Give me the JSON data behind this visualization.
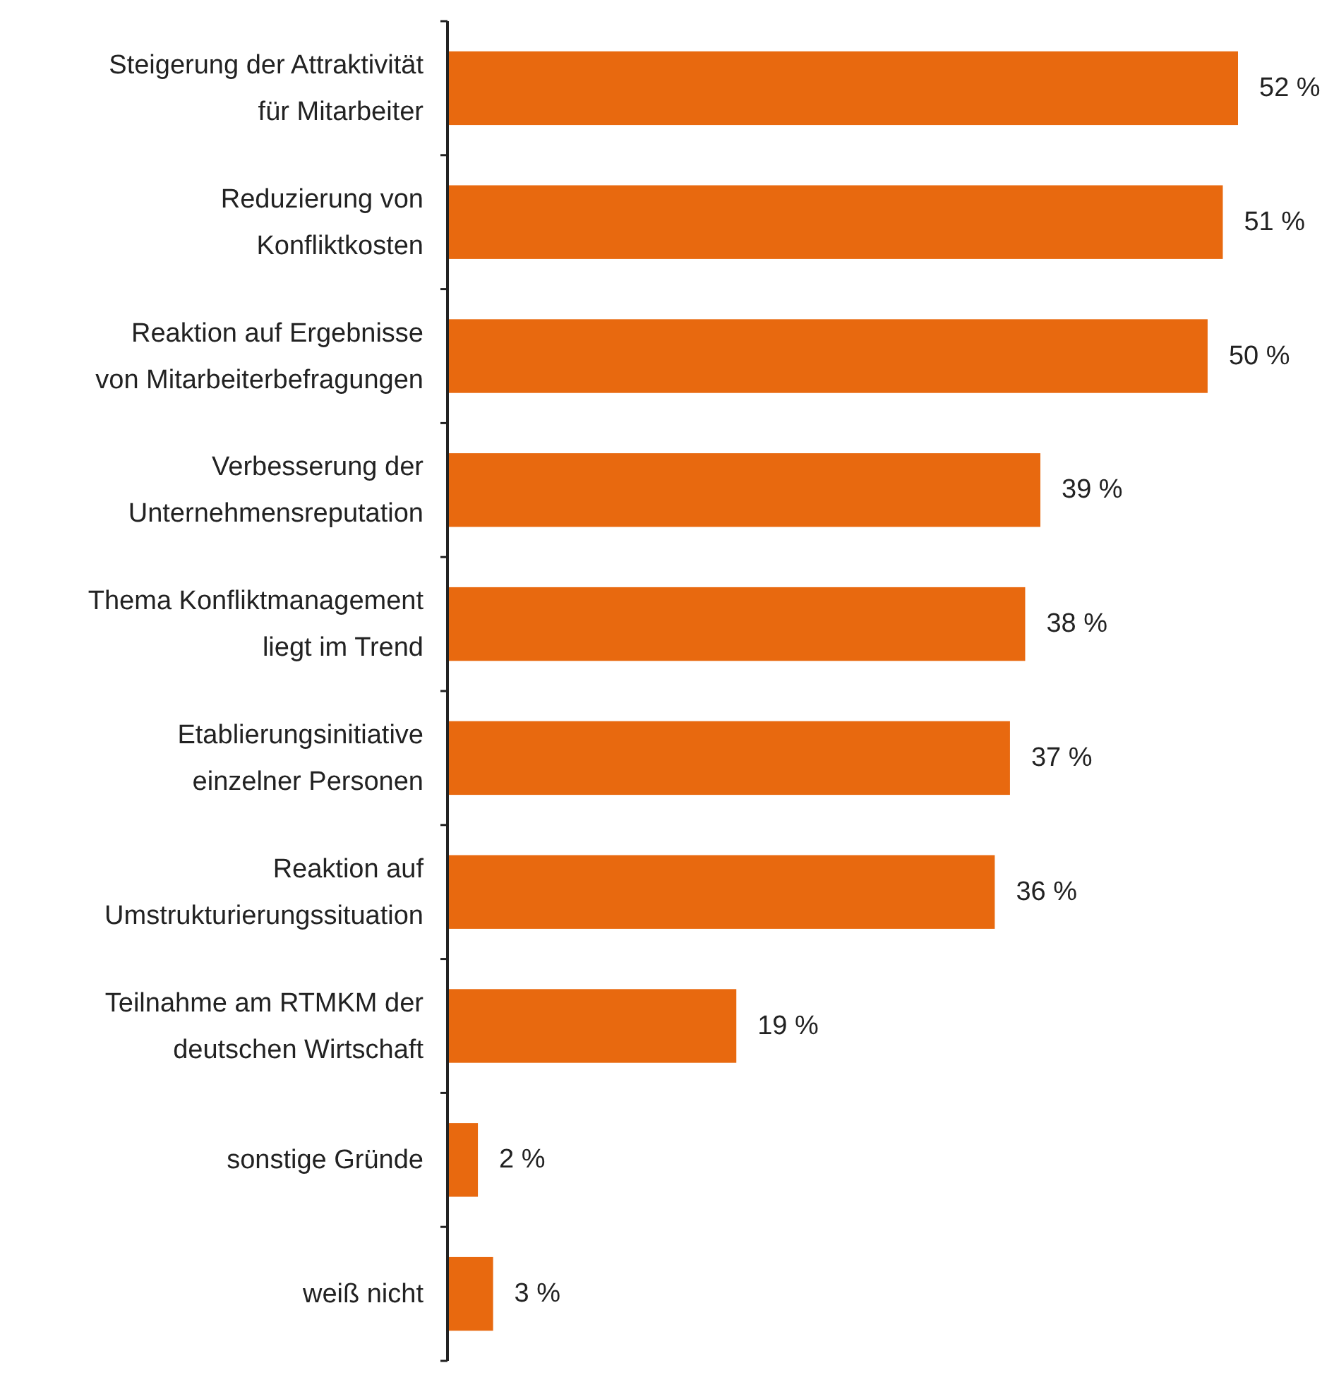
{
  "chart_data": {
    "type": "bar",
    "orientation": "horizontal",
    "categories": [
      "Steigerung der Attraktivität\nfür Mitarbeiter",
      "Reduzierung von\nKonfliktkosten",
      "Reaktion auf Ergebnisse\nvon Mitarbeiterbefragungen",
      "Verbesserung der\nUnternehmensreputation",
      "Thema Konfliktmanagement\nliegt im Trend",
      "Etablierungsinitiative\neinzelner Personen",
      "Reaktion auf\nUmstrukturierungssituation",
      "Teilnahme am RTMKM der\ndeutschen Wirtschaft",
      "sonstige Gründe",
      "weiß nicht"
    ],
    "values": [
      52,
      51,
      50,
      39,
      38,
      37,
      36,
      19,
      2,
      3
    ],
    "value_labels": [
      "52 %",
      "51 %",
      "50 %",
      "39 %",
      "38 %",
      "37 %",
      "36 %",
      "19 %",
      "2 %",
      "3 %"
    ],
    "color": "#e8690f"
  }
}
